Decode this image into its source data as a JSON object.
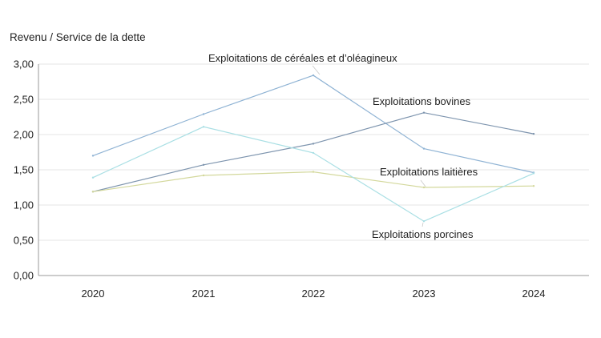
{
  "chart_data": {
    "type": "line",
    "ylabel": "Revenu / Service de la dette",
    "xlabel": "",
    "categories": [
      "2020",
      "2021",
      "2022",
      "2023",
      "2024"
    ],
    "y_ticks": [
      "0,00",
      "0,50",
      "1,00",
      "1,50",
      "2,00",
      "2,50",
      "3,00"
    ],
    "ylim": [
      0,
      3
    ],
    "grid": false,
    "series": [
      {
        "name": "Exploitations de céréales et d’oléagineux",
        "color": "#8fb3d4",
        "values": [
          1.7,
          2.29,
          2.84,
          1.8,
          1.46
        ]
      },
      {
        "name": "Exploitations bovines",
        "color": "#7d94ae",
        "values": [
          1.19,
          1.57,
          1.87,
          2.31,
          2.01
        ]
      },
      {
        "name": "Exploitations laitières",
        "color": "#d3d89c",
        "values": [
          1.19,
          1.42,
          1.47,
          1.25,
          1.27
        ]
      },
      {
        "name": "Exploitations porcines",
        "color": "#a9dfe4",
        "values": [
          1.39,
          2.11,
          1.74,
          0.77,
          1.45
        ]
      }
    ]
  }
}
